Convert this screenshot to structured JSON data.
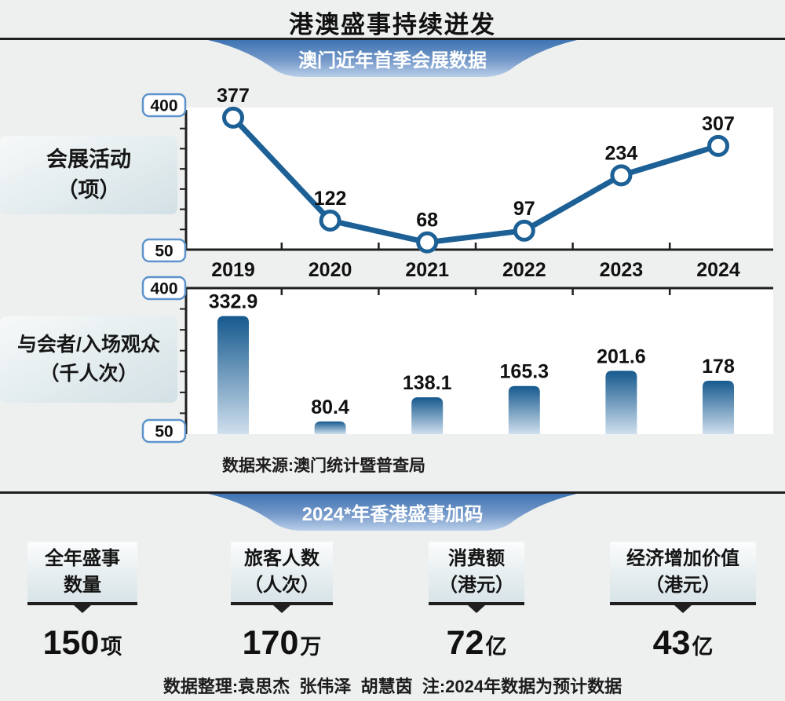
{
  "title": "港澳盛事持续迸发",
  "banners": {
    "macau": "澳门近年首季会展数据",
    "hongkong": "2024*年香港盛事加码"
  },
  "side_labels": {
    "line": "会展活动\n（项）",
    "bar": "与会者/入场观众\n（千人次）"
  },
  "axis_labels": {
    "top": "400",
    "bottom": "50"
  },
  "chart_data": [
    {
      "type": "line",
      "title": "澳门近年首季会展数据",
      "ylabel": "会展活动（项）",
      "categories": [
        "2019",
        "2020",
        "2021",
        "2022",
        "2023",
        "2024"
      ],
      "values": [
        377,
        122,
        68,
        97,
        234,
        307
      ],
      "ylim": [
        50,
        400
      ],
      "y_ticks": [
        50,
        100,
        150,
        200,
        250,
        300,
        350,
        400
      ],
      "grid": false,
      "legend": "none"
    },
    {
      "type": "bar",
      "title": "澳门近年首季会展数据",
      "ylabel": "与会者/入场观众（千人次）",
      "categories": [
        "2019",
        "2020",
        "2021",
        "2022",
        "2023",
        "2024"
      ],
      "values": [
        332.9,
        80.4,
        138.1,
        165.3,
        201.6,
        178
      ],
      "ylim": [
        50,
        400
      ],
      "y_ticks": [
        50,
        100,
        150,
        200,
        250,
        300,
        350,
        400
      ],
      "grid": false,
      "legend": "none"
    }
  ],
  "source": "数据来源:澳门统计暨普查局",
  "stats": {
    "items": [
      {
        "label": "全年盛事\n数量",
        "value": "150",
        "unit": "项"
      },
      {
        "label": "旅客人数\n（人次）",
        "value": "170",
        "unit": "万"
      },
      {
        "label": "消费额\n（港元）",
        "value": "72",
        "unit": "亿"
      },
      {
        "label": "经济增加价值\n（港元）",
        "value": "43",
        "unit": "亿"
      }
    ]
  },
  "footer": "数据整理:袁思杰  张伟泽  胡慧茵  注:2024年数据为预计数据",
  "colors": {
    "line": "#1c6096",
    "marker_fill": "#ffffff",
    "bar_gradient_top": "#16598e",
    "bar_gradient_bottom": "#cfdfed",
    "banner_gradient_top": "#3f74b3",
    "banner_gradient_bottom": "#b9cfe9",
    "axis": "#1f1f1f",
    "axis_box_border": "#5d93cc",
    "label_text": "#111111"
  }
}
